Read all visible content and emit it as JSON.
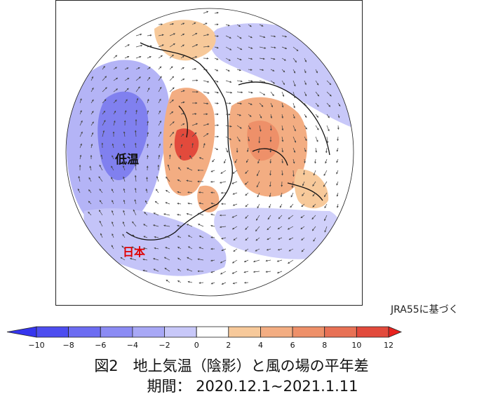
{
  "labels": {
    "cold": "低温",
    "japan": "日本"
  },
  "source_note": "JRA55に基づく",
  "colorbar": {
    "ticks": [
      "−10",
      "−8",
      "−6",
      "−4",
      "−2",
      "0",
      "2",
      "4",
      "6",
      "8",
      "10",
      "12"
    ],
    "colors": [
      "#4d4df0",
      "#6c6cf2",
      "#8b8bf4",
      "#a8a8f6",
      "#c8c8f9",
      "#ffffff",
      "#f7c99a",
      "#f3ad82",
      "#ee9069",
      "#e87155",
      "#e24a3c"
    ]
  },
  "caption": {
    "line1": "図2　地上気温（陰影）と風の場の平年差",
    "line2": "期間：  2020.12.1~2021.1.11"
  },
  "colors": {
    "cold_label": "#111111",
    "japan_label": "#e00000"
  }
}
